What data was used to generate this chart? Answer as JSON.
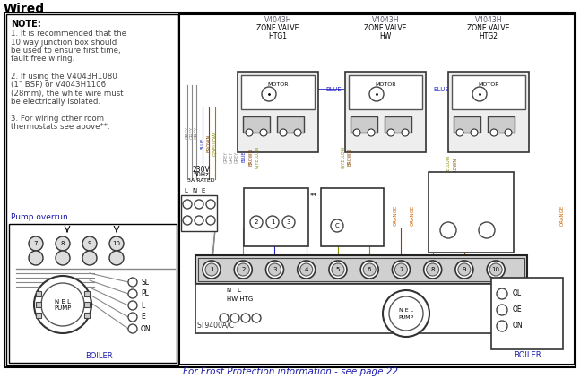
{
  "title": "Wired",
  "bg_color": "#ffffff",
  "text_color": "#000000",
  "blue_color": "#1a1aaa",
  "note_lines": [
    "NOTE:",
    "1. It is recommended that the",
    "10 way junction box should",
    "be used to ensure first time,",
    "fault free wiring.",
    "",
    "2. If using the V4043H1080",
    "(1\" BSP) or V4043H1106",
    "(28mm), the white wire must",
    "be electrically isolated.",
    "",
    "3. For wiring other room",
    "thermostats see above**."
  ],
  "pump_overrun_label": "Pump overrun",
  "footer_text": "For Frost Protection information - see page 22",
  "zone_labels": [
    [
      "V4043H",
      "ZONE VALVE",
      "HTG1"
    ],
    [
      "V4043H",
      "ZONE VALVE",
      "HW"
    ],
    [
      "V4043H",
      "ZONE VALVE",
      "HTG2"
    ]
  ],
  "wire_grey": "#888888",
  "wire_blue": "#2222cc",
  "wire_brown": "#884400",
  "wire_gyellow": "#888800",
  "wire_orange": "#cc6600",
  "label_color": "#555566"
}
